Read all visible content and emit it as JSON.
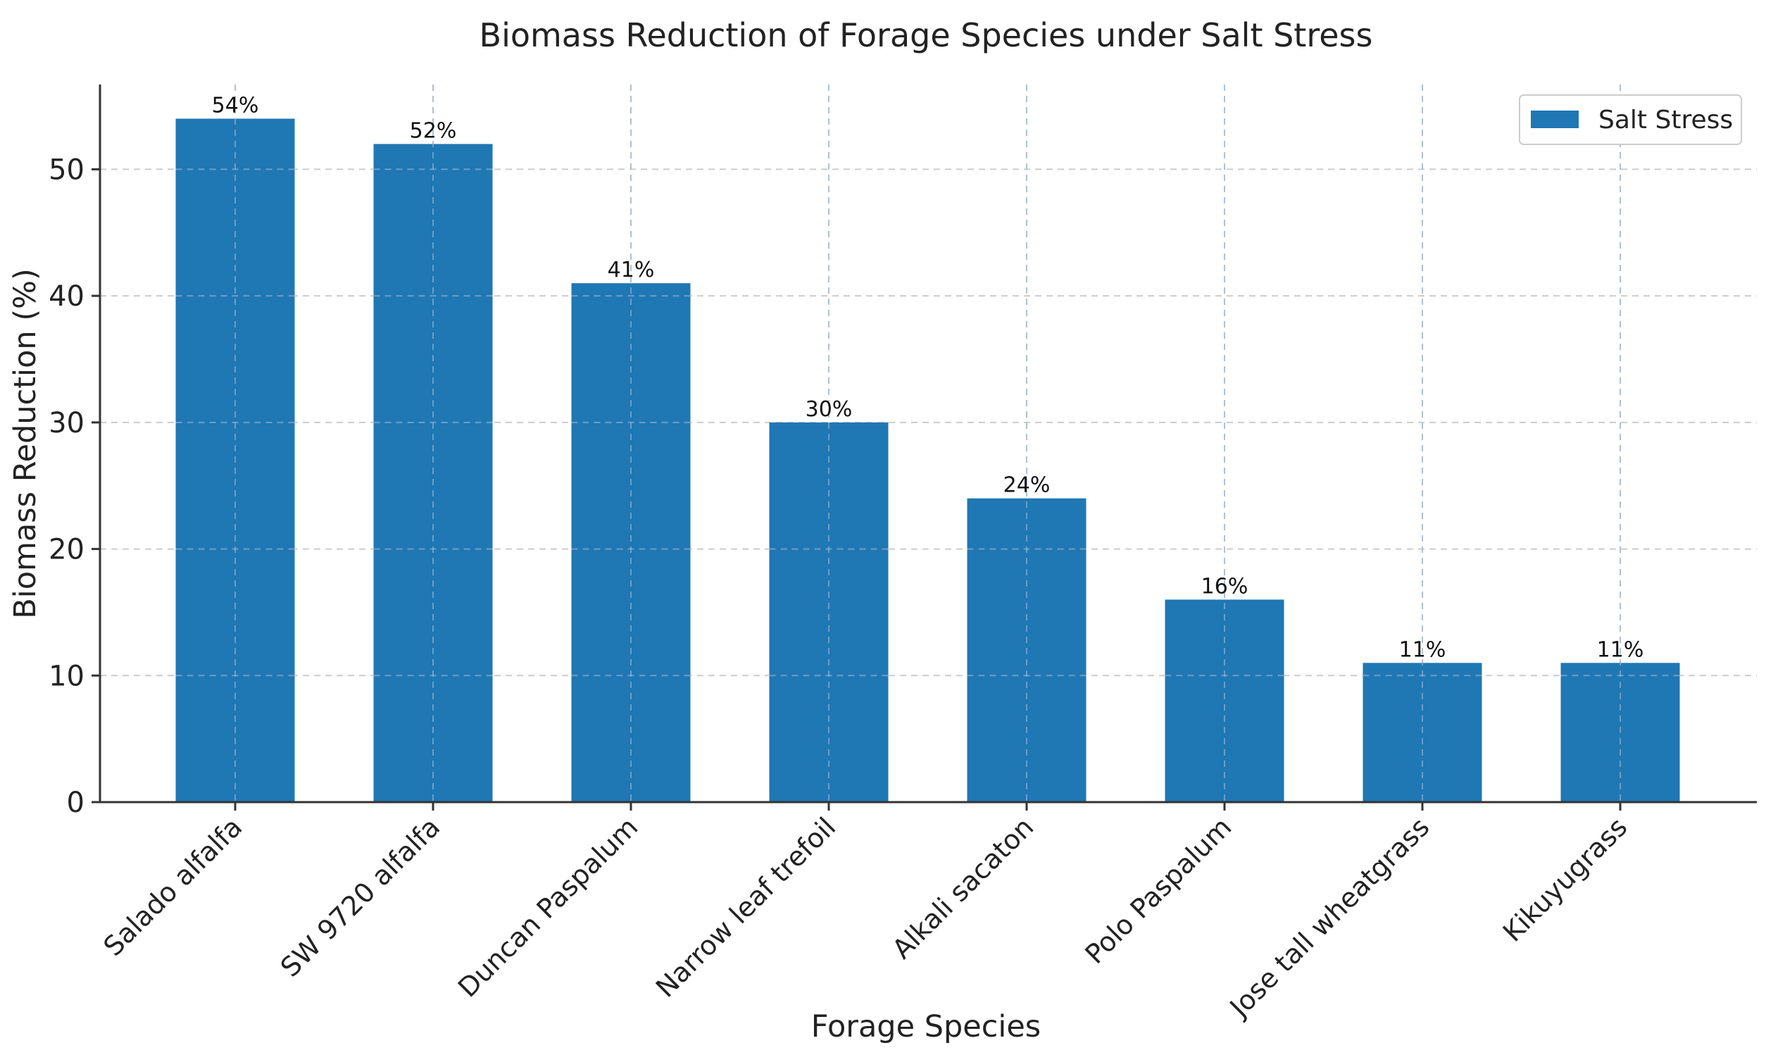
{
  "chart_data": {
    "type": "bar",
    "title": "Biomass Reduction of Forage Species under Salt Stress",
    "xlabel": "Forage Species",
    "ylabel": "Biomass Reduction (%)",
    "categories": [
      "Salado alfalfa",
      "SW 9720 alfalfa",
      "Duncan Paspalum",
      "Narrow leaf trefoil",
      "Alkali sacaton",
      "Polo Paspalum",
      "Jose tall wheatgrass",
      "Kikuyugrass"
    ],
    "series": [
      {
        "name": "Salt Stress",
        "values": [
          54,
          52,
          41,
          30,
          24,
          16,
          11,
          11
        ],
        "data_labels": [
          "54%",
          "52%",
          "41%",
          "30%",
          "24%",
          "16%",
          "11%",
          "11%"
        ],
        "color": "#1f77b4"
      }
    ],
    "ylim": [
      0,
      56.7
    ],
    "yticks": [
      0,
      10,
      20,
      30,
      40,
      50
    ],
    "ytick_labels": [
      "0",
      "10",
      "20",
      "30",
      "40",
      "50"
    ],
    "grid": true,
    "legend": {
      "position": "top-right",
      "entries": [
        "Salt Stress"
      ]
    }
  }
}
